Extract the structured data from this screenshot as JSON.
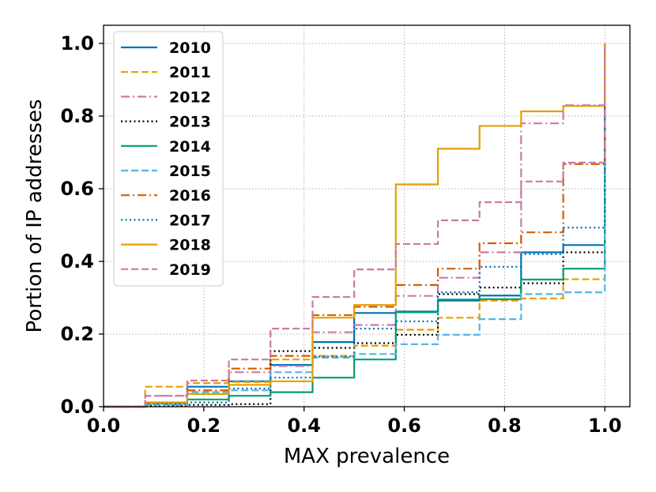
{
  "chart_data": {
    "type": "line",
    "step": true,
    "xlabel": "MAX prevalence",
    "ylabel": "Portion of IP addresses",
    "xlim": [
      0.0,
      1.05
    ],
    "ylim": [
      0.0,
      1.05
    ],
    "xticks": [
      "0.0",
      "0.2",
      "0.4",
      "0.6",
      "0.8",
      "1.0"
    ],
    "yticks": [
      "0.0",
      "0.2",
      "0.4",
      "0.6",
      "0.8",
      "1.0"
    ],
    "grid": true,
    "legend_position": "top-left",
    "series": [
      {
        "name": "2010",
        "color": "#0072B2",
        "dash": "solid",
        "x": [
          0.0,
          0.083,
          0.167,
          0.25,
          0.333,
          0.417,
          0.5,
          0.583,
          0.667,
          0.75,
          0.833,
          0.917,
          1.0
        ],
        "y": [
          0.0,
          0.01,
          0.055,
          0.07,
          0.115,
          0.178,
          0.258,
          0.262,
          0.292,
          0.306,
          0.425,
          0.445,
          1.0
        ]
      },
      {
        "name": "2011",
        "color": "#E69F00",
        "dash": "dashed",
        "x": [
          0.0,
          0.083,
          0.167,
          0.25,
          0.333,
          0.417,
          0.5,
          0.583,
          0.667,
          0.75,
          0.833,
          0.917,
          1.0
        ],
        "y": [
          0.0,
          0.055,
          0.065,
          0.068,
          0.13,
          0.14,
          0.168,
          0.212,
          0.245,
          0.292,
          0.298,
          0.351,
          1.0
        ]
      },
      {
        "name": "2012",
        "color": "#CC79A7",
        "dash": "dashdot",
        "x": [
          0.0,
          0.083,
          0.167,
          0.25,
          0.333,
          0.417,
          0.5,
          0.583,
          0.667,
          0.75,
          0.833,
          0.917,
          1.0
        ],
        "y": [
          0.0,
          0.03,
          0.045,
          0.095,
          0.112,
          0.205,
          0.225,
          0.305,
          0.355,
          0.425,
          0.78,
          0.83,
          1.0
        ]
      },
      {
        "name": "2013",
        "color": "#000000",
        "dash": "dotted",
        "x": [
          0.0,
          0.083,
          0.167,
          0.25,
          0.333,
          0.417,
          0.5,
          0.583,
          0.667,
          0.75,
          0.833,
          0.917,
          1.0
        ],
        "y": [
          0.0,
          0.003,
          0.005,
          0.007,
          0.153,
          0.162,
          0.175,
          0.198,
          0.31,
          0.328,
          0.34,
          0.425,
          1.0
        ]
      },
      {
        "name": "2014",
        "color": "#009E73",
        "dash": "solid",
        "x": [
          0.0,
          0.083,
          0.167,
          0.25,
          0.333,
          0.417,
          0.5,
          0.583,
          0.667,
          0.75,
          0.833,
          0.917,
          1.0
        ],
        "y": [
          0.0,
          0.01,
          0.02,
          0.03,
          0.04,
          0.08,
          0.13,
          0.26,
          0.295,
          0.296,
          0.35,
          0.38,
          1.0
        ]
      },
      {
        "name": "2015",
        "color": "#56B4E9",
        "dash": "dashed",
        "x": [
          0.0,
          0.083,
          0.167,
          0.25,
          0.333,
          0.417,
          0.5,
          0.583,
          0.667,
          0.75,
          0.833,
          0.917,
          1.0
        ],
        "y": [
          0.0,
          0.005,
          0.04,
          0.045,
          0.095,
          0.135,
          0.145,
          0.172,
          0.198,
          0.241,
          0.31,
          0.315,
          1.0
        ]
      },
      {
        "name": "2016",
        "color": "#D55E00",
        "dash": "dashdot",
        "x": [
          0.0,
          0.083,
          0.167,
          0.25,
          0.333,
          0.417,
          0.5,
          0.583,
          0.667,
          0.75,
          0.833,
          0.917,
          1.0
        ],
        "y": [
          0.0,
          0.01,
          0.045,
          0.105,
          0.14,
          0.252,
          0.275,
          0.335,
          0.38,
          0.45,
          0.48,
          0.668,
          1.0
        ]
      },
      {
        "name": "2017",
        "color": "#0072B2",
        "dash": "dotted",
        "x": [
          0.0,
          0.083,
          0.167,
          0.25,
          0.333,
          0.417,
          0.5,
          0.583,
          0.667,
          0.75,
          0.833,
          0.917,
          1.0
        ],
        "y": [
          0.0,
          0.008,
          0.012,
          0.05,
          0.08,
          0.138,
          0.215,
          0.235,
          0.315,
          0.385,
          0.42,
          0.493,
          1.0
        ]
      },
      {
        "name": "2018",
        "color": "#E69F00",
        "dash": "solid",
        "x": [
          0.0,
          0.083,
          0.167,
          0.25,
          0.333,
          0.417,
          0.5,
          0.583,
          0.667,
          0.75,
          0.833,
          0.917,
          1.0
        ],
        "y": [
          0.0,
          0.012,
          0.035,
          0.06,
          0.07,
          0.245,
          0.28,
          0.612,
          0.71,
          0.773,
          0.813,
          0.828,
          1.0
        ]
      },
      {
        "name": "2019",
        "color": "#CC79A7",
        "dash": "dashed",
        "x": [
          0.0,
          0.083,
          0.167,
          0.25,
          0.333,
          0.417,
          0.5,
          0.583,
          0.667,
          0.75,
          0.833,
          0.917,
          1.0
        ],
        "y": [
          0.0,
          0.03,
          0.072,
          0.13,
          0.215,
          0.302,
          0.378,
          0.448,
          0.513,
          0.563,
          0.62,
          0.672,
          1.0
        ]
      }
    ]
  }
}
